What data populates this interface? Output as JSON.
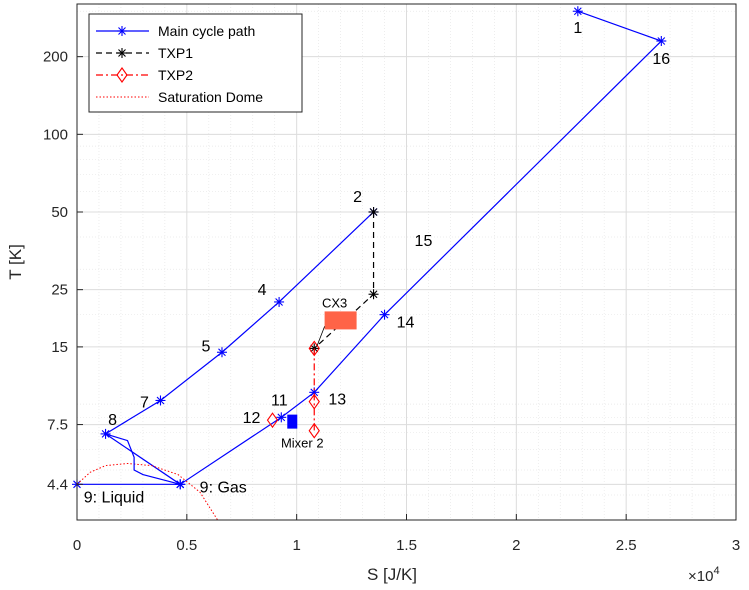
{
  "chart_data": {
    "type": "line",
    "title": "",
    "xlabel": "S [J/K]",
    "ylabel": "T [K]",
    "x_exponent_label": "×10",
    "x_exponent_power": "4",
    "xlim": [
      0,
      30000
    ],
    "ylim": [
      3.2,
      320
    ],
    "yscale": "log",
    "grid": true,
    "minor_grid": true,
    "x_ticks": [
      0,
      5000,
      10000,
      15000,
      20000,
      25000,
      30000
    ],
    "x_tick_labels": [
      "0",
      "0.5",
      "1",
      "1.5",
      "2",
      "2.5",
      "3"
    ],
    "y_ticks": [
      4.4,
      7.5,
      15,
      25,
      50,
      100,
      200
    ],
    "y_tick_labels": [
      "4.4",
      "7.5",
      "15",
      "25",
      "50",
      "100",
      "200"
    ],
    "legend_position": "top-left",
    "series": [
      {
        "name": "Main cycle path",
        "color": "#0000ff",
        "line_style": "solid",
        "marker": "asterisk",
        "x": [
          22800,
          26600,
          14000,
          10800,
          9300,
          4700,
          0,
          4700,
          1300,
          3800,
          6600,
          9200,
          13500
        ],
        "y": [
          300,
          230,
          20,
          10,
          8,
          4.4,
          4.4,
          4.4,
          6.9,
          9.3,
          14.3,
          22.4,
          50
        ]
      },
      {
        "name": "TXP1",
        "color": "#000000",
        "line_style": "dashed",
        "marker": "asterisk",
        "x": [
          13500,
          13500,
          10800
        ],
        "y": [
          50,
          24,
          14.8
        ]
      },
      {
        "name": "TXP2",
        "color": "#ff0000",
        "line_style": "dashdot",
        "marker": "diamond",
        "x": [
          10800,
          10800,
          10800
        ],
        "y": [
          14.8,
          9.2,
          7.1
        ]
      },
      {
        "name": "Saturation Dome",
        "color": "#ff0000",
        "line_style": "dotted",
        "marker": "none",
        "x": [
          0,
          600,
          1300,
          2300,
          3400,
          4600,
          5600,
          6400
        ],
        "y": [
          4.4,
          4.9,
          5.2,
          5.3,
          5.2,
          4.8,
          4.1,
          3.2
        ]
      }
    ],
    "extra_segments": [
      {
        "name": "8 to 9 expansion curve",
        "color": "#0000ff",
        "x": [
          1300,
          2300,
          2600,
          2600,
          3000,
          4700
        ],
        "y": [
          6.9,
          6.5,
          5.6,
          5.0,
          4.8,
          4.4
        ]
      },
      {
        "name": "12 marker",
        "color": "#ff0000",
        "x": [
          8900
        ],
        "y": [
          7.8
        ]
      }
    ],
    "point_labels": [
      {
        "text": "1",
        "x": 22800,
        "y": 300
      },
      {
        "text": "16",
        "x": 26600,
        "y": 230
      },
      {
        "text": "2",
        "x": 13500,
        "y": 50
      },
      {
        "text": "15",
        "x": 16500,
        "y": 34
      },
      {
        "text": "4",
        "x": 9200,
        "y": 22.4
      },
      {
        "text": "14",
        "x": 14000,
        "y": 20
      },
      {
        "text": "5",
        "x": 6600,
        "y": 14.3
      },
      {
        "text": "11",
        "x": 9300,
        "y": 8
      },
      {
        "text": "13",
        "x": 10800,
        "y": 10
      },
      {
        "text": "7",
        "x": 3800,
        "y": 9.3
      },
      {
        "text": "12",
        "x": 8900,
        "y": 7.8
      },
      {
        "text": "8",
        "x": 1300,
        "y": 6.9
      },
      {
        "text": "9: Gas",
        "x": 4700,
        "y": 4.4
      },
      {
        "text": "9: Liquid",
        "x": 0,
        "y": 4.4
      }
    ],
    "annotations": [
      {
        "text": "CX3",
        "color": "#ff6347",
        "x": 12000,
        "y": 19,
        "shape": "rectangle"
      },
      {
        "text": "Mixer 2",
        "color": "#0000ff",
        "x": 9800,
        "y": 7.7,
        "shape": "square"
      }
    ]
  }
}
